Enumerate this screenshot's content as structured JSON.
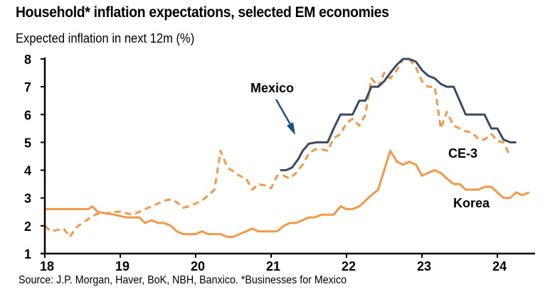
{
  "chart_data": {
    "type": "line",
    "title": "Household* inflation expectations, selected EM economies",
    "subtitle": "Expected inflation in next 12m (%)",
    "xlabel": "",
    "ylabel": "Expected inflation in next 12m (%)",
    "source": "Source: J.P. Morgan, Haver, BoK, NBH, Banxico. *Businesses for Mexico",
    "xlim": [
      18,
      24.5
    ],
    "ylim": [
      1,
      8
    ],
    "x_ticks": [
      18,
      19,
      20,
      21,
      22,
      23,
      24
    ],
    "x_tick_labels": [
      "18",
      "19",
      "20",
      "21",
      "22",
      "23",
      "24"
    ],
    "y_ticks": [
      1,
      2,
      3,
      4,
      5,
      6,
      7,
      8
    ],
    "y_tick_labels": [
      "1",
      "2",
      "3",
      "4",
      "5",
      "6",
      "7",
      "8"
    ],
    "grid": false,
    "annotations": [
      {
        "text": "Mexico",
        "series": "Mexico",
        "arrow": true
      },
      {
        "text": "CE-3",
        "series": "CE-3",
        "arrow": false
      },
      {
        "text": "Korea",
        "series": "Korea",
        "arrow": false
      }
    ],
    "series": [
      {
        "name": "Mexico",
        "style": "solid",
        "color": "#3B4A63",
        "x": [
          21.12,
          21.2,
          21.28,
          21.36,
          21.42,
          21.5,
          21.6,
          21.75,
          21.83,
          21.92,
          22.0,
          22.08,
          22.17,
          22.25,
          22.33,
          22.42,
          22.5,
          22.58,
          22.67,
          22.75,
          22.83,
          22.92,
          23.0,
          23.08,
          23.17,
          23.25,
          23.33,
          23.42,
          23.5,
          23.58,
          23.67,
          23.75,
          23.83,
          23.92,
          24.0,
          24.08,
          24.17,
          24.25
        ],
        "values": [
          4.0,
          4.0,
          4.1,
          4.4,
          4.7,
          4.95,
          5.0,
          5.0,
          5.5,
          6.0,
          6.0,
          6.0,
          6.5,
          6.5,
          7.0,
          7.0,
          7.2,
          7.5,
          7.8,
          8.0,
          8.0,
          7.9,
          7.6,
          7.4,
          7.3,
          7.1,
          7.0,
          7.0,
          6.5,
          6.0,
          6.0,
          6.0,
          6.0,
          5.5,
          5.5,
          5.1,
          5.0,
          5.0
        ]
      },
      {
        "name": "CE-3",
        "style": "dashed",
        "color": "#F0994A",
        "x": [
          18.0,
          18.08,
          18.17,
          18.25,
          18.33,
          18.42,
          18.5,
          18.58,
          18.67,
          18.75,
          18.83,
          18.92,
          19.0,
          19.08,
          19.17,
          19.25,
          19.33,
          19.42,
          19.5,
          19.58,
          19.67,
          19.75,
          19.83,
          19.92,
          20.0,
          20.08,
          20.17,
          20.25,
          20.33,
          20.42,
          20.5,
          20.58,
          20.67,
          20.75,
          20.83,
          20.92,
          21.0,
          21.08,
          21.17,
          21.25,
          21.33,
          21.42,
          21.5,
          21.58,
          21.67,
          21.75,
          21.83,
          21.92,
          22.0,
          22.08,
          22.17,
          22.25,
          22.33,
          22.42,
          22.5,
          22.58,
          22.67,
          22.75,
          22.83,
          22.92,
          23.0,
          23.08,
          23.17,
          23.25,
          23.33,
          23.42,
          23.5,
          23.58,
          23.67,
          23.75,
          23.83,
          23.92,
          24.0,
          24.08,
          24.17
        ],
        "values": [
          2.0,
          1.8,
          1.85,
          1.9,
          1.6,
          1.95,
          2.1,
          2.25,
          2.4,
          2.45,
          2.45,
          2.5,
          2.5,
          2.45,
          2.4,
          2.5,
          2.6,
          2.7,
          2.8,
          2.9,
          2.95,
          2.85,
          2.65,
          2.7,
          2.8,
          2.9,
          3.1,
          3.3,
          4.7,
          4.1,
          3.95,
          3.8,
          3.7,
          3.3,
          3.5,
          3.45,
          3.35,
          3.8,
          3.8,
          3.7,
          3.9,
          4.2,
          4.6,
          4.75,
          4.75,
          4.7,
          5.15,
          5.3,
          5.7,
          5.85,
          5.6,
          6.0,
          7.3,
          7.0,
          7.5,
          7.3,
          7.6,
          8.0,
          8.0,
          7.7,
          7.2,
          7.0,
          7.0,
          5.5,
          6.1,
          5.6,
          5.5,
          5.4,
          5.35,
          5.1,
          5.1,
          5.3,
          5.05,
          5.0,
          4.5
        ]
      },
      {
        "name": "Korea",
        "style": "solid",
        "color": "#F0994A",
        "x": [
          18.0,
          18.08,
          18.17,
          18.25,
          18.33,
          18.42,
          18.5,
          18.58,
          18.63,
          18.7,
          18.8,
          18.92,
          19.0,
          19.08,
          19.17,
          19.25,
          19.33,
          19.42,
          19.5,
          19.58,
          19.67,
          19.75,
          19.83,
          19.92,
          20.0,
          20.08,
          20.17,
          20.25,
          20.33,
          20.42,
          20.5,
          20.58,
          20.67,
          20.75,
          20.83,
          20.92,
          21.0,
          21.08,
          21.17,
          21.25,
          21.33,
          21.42,
          21.5,
          21.58,
          21.67,
          21.75,
          21.83,
          21.92,
          22.0,
          22.08,
          22.17,
          22.25,
          22.33,
          22.42,
          22.5,
          22.58,
          22.67,
          22.75,
          22.83,
          22.92,
          23.0,
          23.08,
          23.17,
          23.25,
          23.33,
          23.42,
          23.5,
          23.58,
          23.67,
          23.75,
          23.83,
          23.92,
          24.0,
          24.08,
          24.17,
          24.25,
          24.33,
          24.42
        ],
        "values": [
          2.6,
          2.6,
          2.6,
          2.6,
          2.6,
          2.6,
          2.6,
          2.6,
          2.7,
          2.5,
          2.45,
          2.4,
          2.35,
          2.3,
          2.3,
          2.3,
          2.1,
          2.2,
          2.1,
          2.1,
          2.0,
          1.8,
          1.7,
          1.7,
          1.7,
          1.8,
          1.7,
          1.7,
          1.7,
          1.6,
          1.6,
          1.7,
          1.8,
          1.9,
          1.8,
          1.8,
          1.8,
          1.8,
          2.0,
          2.1,
          2.1,
          2.2,
          2.3,
          2.3,
          2.4,
          2.4,
          2.4,
          2.7,
          2.6,
          2.6,
          2.7,
          2.9,
          3.1,
          3.3,
          4.0,
          4.7,
          4.3,
          4.2,
          4.3,
          4.2,
          3.8,
          3.9,
          4.0,
          3.9,
          3.7,
          3.5,
          3.5,
          3.3,
          3.3,
          3.3,
          3.4,
          3.4,
          3.2,
          3.0,
          3.0,
          3.2,
          3.1,
          3.2
        ]
      }
    ]
  }
}
